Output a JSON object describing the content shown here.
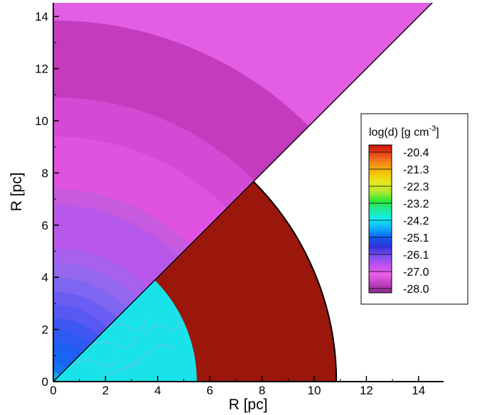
{
  "chart_data": {
    "type": "heatmap",
    "xlabel": "R [pc]",
    "ylabel": "R [pc]",
    "xlim": [
      0,
      15
    ],
    "ylim": [
      0,
      14.6
    ],
    "x_ticks": [
      "0",
      "2",
      "4",
      "6",
      "8",
      "10",
      "12",
      "14"
    ],
    "y_ticks": [
      "0",
      "2",
      "4",
      "6",
      "8",
      "10",
      "12",
      "14"
    ],
    "colorbar": {
      "title_main": "log(d) [g cm",
      "title_sup": "-3",
      "title_end": "]",
      "levels": [
        "-20.4",
        "-21.3",
        "-22.3",
        "-23.2",
        "-24.2",
        "-25.1",
        "-26.1",
        "-27.0",
        "-28.0"
      ],
      "stops": [
        "#ce1010",
        "#e84a18",
        "#f58a1c",
        "#f5c200",
        "#e8e820",
        "#b8e830",
        "#30e830",
        "#20e8a0",
        "#10ecec",
        "#10b0ff",
        "#1060f0",
        "#3030d8",
        "#7a50f0",
        "#c050f0",
        "#e860e8",
        "#c040c0",
        "#8a2a8a"
      ]
    },
    "regions": {
      "upper_wedge": {
        "angle_range_deg": [
          45,
          90
        ],
        "bands": [
          {
            "r": 14.6,
            "color": "#e25ee4"
          },
          {
            "r": 13.85,
            "color": "#c43cbd"
          },
          {
            "r": 10.9,
            "color": "#d54ad5"
          },
          {
            "r": 9.4,
            "color": "#e052e2"
          },
          {
            "r": 7.4,
            "color": "#c85ae0"
          },
          {
            "r": 6.8,
            "color": "#b858ea"
          },
          {
            "r": 5.1,
            "color": "#a662ee"
          },
          {
            "r": 4.55,
            "color": "#9468ee"
          },
          {
            "r": 4.0,
            "color": "#7e66f0"
          },
          {
            "r": 3.45,
            "color": "#6a5ef2"
          },
          {
            "r": 2.95,
            "color": "#5858f2"
          },
          {
            "r": 2.45,
            "color": "#4056f4"
          },
          {
            "r": 2.0,
            "color": "#2e5af4"
          },
          {
            "r": 1.55,
            "color": "#1e5ff4"
          },
          {
            "r": 1.1,
            "color": "#1668f2"
          },
          {
            "r": 0.7,
            "color": "#1476ee"
          },
          {
            "r": 0.35,
            "color": "#16a6ee"
          }
        ]
      },
      "lower_wedge": {
        "angle_range_deg": [
          0,
          45
        ],
        "bands": [
          {
            "r": 10.85,
            "color": "#9b170b"
          },
          {
            "r": 5.5,
            "color": "#19e3e8"
          }
        ]
      }
    }
  }
}
